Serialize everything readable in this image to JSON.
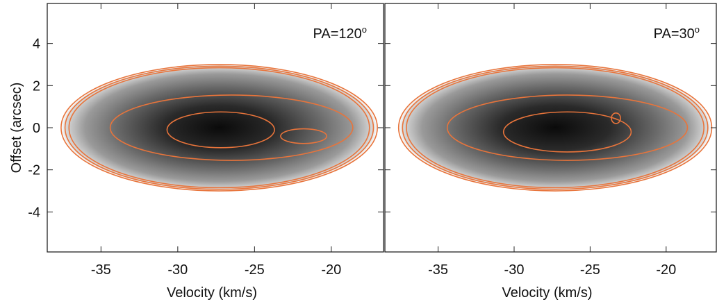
{
  "chart_data": [
    {
      "type": "image",
      "xlabel": "Velocity (km/s)",
      "ylabel": "Offset (arcsec)",
      "annotation": "PA=120",
      "annotation_superscript": "o",
      "xlim": [
        -38.5,
        -16.6
      ],
      "ylim": [
        -5.9,
        5.9
      ],
      "xticks": [
        -35,
        -30,
        -25,
        -20
      ],
      "yticks": [
        -4,
        -2,
        0,
        2,
        4
      ]
    },
    {
      "type": "image",
      "xlabel": "Velocity (km/s)",
      "annotation": "PA=30",
      "annotation_superscript": "o",
      "xlim": [
        -38.5,
        -16.7
      ],
      "ylim": [
        -5.9,
        5.9
      ],
      "xticks": [
        -35,
        -30,
        -25,
        -20
      ],
      "yticks": [
        -4,
        -2,
        0,
        2,
        4
      ]
    }
  ]
}
